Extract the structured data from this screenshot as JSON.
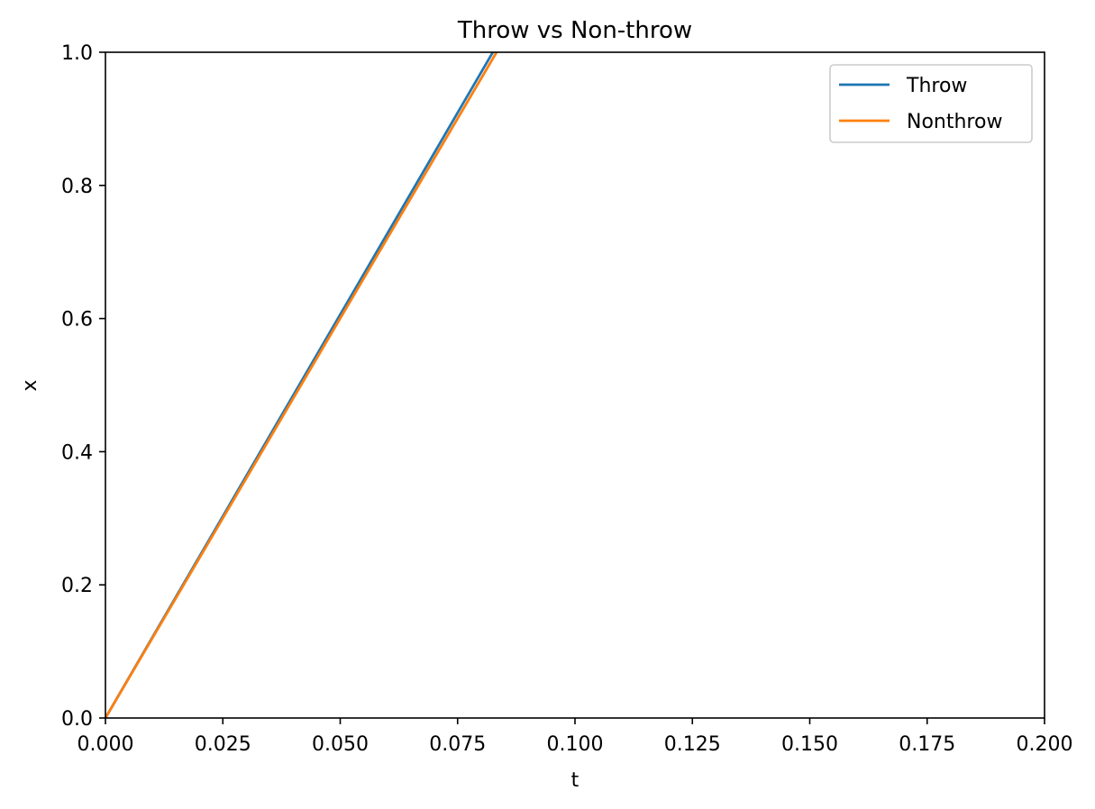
{
  "chart_data": {
    "type": "line",
    "title": "Throw vs Non-throw",
    "xlabel": "t",
    "ylabel": "x",
    "xlim": [
      0.0,
      0.2
    ],
    "ylim": [
      0.0,
      1.0
    ],
    "xticks": [
      0.0,
      0.025,
      0.05,
      0.075,
      0.1,
      0.125,
      0.15,
      0.175,
      0.2
    ],
    "xtick_labels": [
      "0.000",
      "0.025",
      "0.050",
      "0.075",
      "0.100",
      "0.125",
      "0.150",
      "0.175",
      "0.200"
    ],
    "yticks": [
      0.0,
      0.2,
      0.4,
      0.6,
      0.8,
      1.0
    ],
    "ytick_labels": [
      "0.0",
      "0.2",
      "0.4",
      "0.6",
      "0.8",
      "1.0"
    ],
    "grid": false,
    "legend_position": "top-right",
    "series": [
      {
        "name": "Throw",
        "color": "#1f77b4",
        "x": [
          0.0,
          0.0825
        ],
        "y": [
          0.0,
          1.0
        ]
      },
      {
        "name": "Nonthrow",
        "color": "#ff7f0e",
        "x": [
          0.0,
          0.0833
        ],
        "y": [
          0.0,
          1.0
        ]
      }
    ]
  }
}
